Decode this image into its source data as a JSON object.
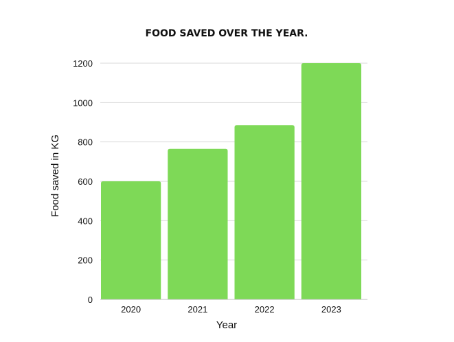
{
  "chart_data": {
    "type": "bar",
    "title": "FOOD SAVED OVER THE YEAR.",
    "xlabel": "Year",
    "ylabel": "Food saved in KG",
    "categories": [
      "2020",
      "2021",
      "2022",
      "2023"
    ],
    "values": [
      600,
      765,
      885,
      1200
    ],
    "ylim": [
      0,
      1200
    ],
    "yticks": [
      0,
      200,
      400,
      600,
      800,
      1000,
      1200
    ],
    "grid": true,
    "legend": "none",
    "bar_color": "#7ed957"
  }
}
